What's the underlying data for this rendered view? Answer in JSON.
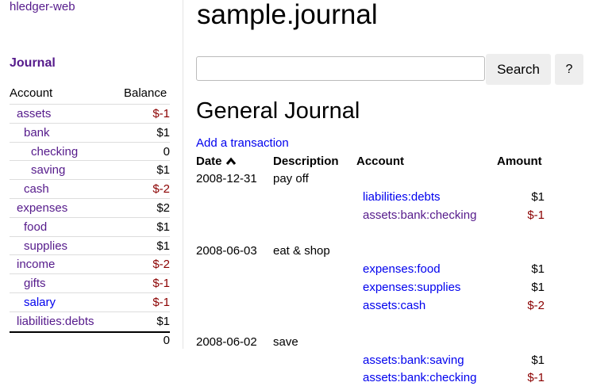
{
  "sidebar": {
    "app_link": "hledger-web",
    "journal_link": "Journal",
    "headers": {
      "account": "Account",
      "balance": "Balance"
    },
    "accounts": [
      {
        "name": "assets",
        "depth": 0,
        "balance": "$-1",
        "negative": true,
        "visited": true
      },
      {
        "name": "bank",
        "depth": 1,
        "balance": "$1",
        "negative": false,
        "visited": true
      },
      {
        "name": "checking",
        "depth": 2,
        "balance": "0",
        "negative": false,
        "visited": true
      },
      {
        "name": "saving",
        "depth": 2,
        "balance": "$1",
        "negative": false,
        "visited": true
      },
      {
        "name": "cash",
        "depth": 1,
        "balance": "$-2",
        "negative": true,
        "visited": true
      },
      {
        "name": "expenses",
        "depth": 0,
        "balance": "$2",
        "negative": false,
        "visited": true
      },
      {
        "name": "food",
        "depth": 1,
        "balance": "$1",
        "negative": false,
        "visited": true
      },
      {
        "name": "supplies",
        "depth": 1,
        "balance": "$1",
        "negative": false,
        "visited": true
      },
      {
        "name": "income",
        "depth": 0,
        "balance": "$-2",
        "negative": true,
        "visited": true
      },
      {
        "name": "gifts",
        "depth": 1,
        "balance": "$-1",
        "negative": true,
        "visited": true
      },
      {
        "name": "salary",
        "depth": 1,
        "balance": "$-1",
        "negative": true,
        "visited": false
      },
      {
        "name": "liabilities:debts",
        "depth": 0,
        "balance": "$1",
        "negative": false,
        "visited": true
      }
    ],
    "total": "0"
  },
  "main": {
    "title": "sample.journal",
    "search": {
      "value": "",
      "placeholder": "",
      "button": "Search",
      "help": "?"
    },
    "heading": "General Journal",
    "add_link": "Add a transaction",
    "columns": {
      "date": "Date",
      "description": "Description",
      "account": "Account",
      "amount": "Amount",
      "sort_icon": "caret-up-icon"
    },
    "transactions": [
      {
        "date": "2008-12-31",
        "description": "pay off",
        "postings": [
          {
            "account": "liabilities:debts",
            "amount": "$1",
            "negative": false,
            "visited": false
          },
          {
            "account": "assets:bank:checking",
            "amount": "$-1",
            "negative": true,
            "visited": true
          }
        ]
      },
      {
        "date": "2008-06-03",
        "description": "eat & shop",
        "postings": [
          {
            "account": "expenses:food",
            "amount": "$1",
            "negative": false,
            "visited": false
          },
          {
            "account": "expenses:supplies",
            "amount": "$1",
            "negative": false,
            "visited": false
          },
          {
            "account": "assets:cash",
            "amount": "$-2",
            "negative": true,
            "visited": false
          }
        ]
      },
      {
        "date": "2008-06-02",
        "description": "save",
        "postings": [
          {
            "account": "assets:bank:saving",
            "amount": "$1",
            "negative": false,
            "visited": false
          },
          {
            "account": "assets:bank:checking",
            "amount": "$-1",
            "negative": true,
            "visited": false
          }
        ]
      }
    ]
  },
  "colors": {
    "visited": "#551a8b",
    "link": "#0000ee",
    "negative": "#8b0000"
  }
}
